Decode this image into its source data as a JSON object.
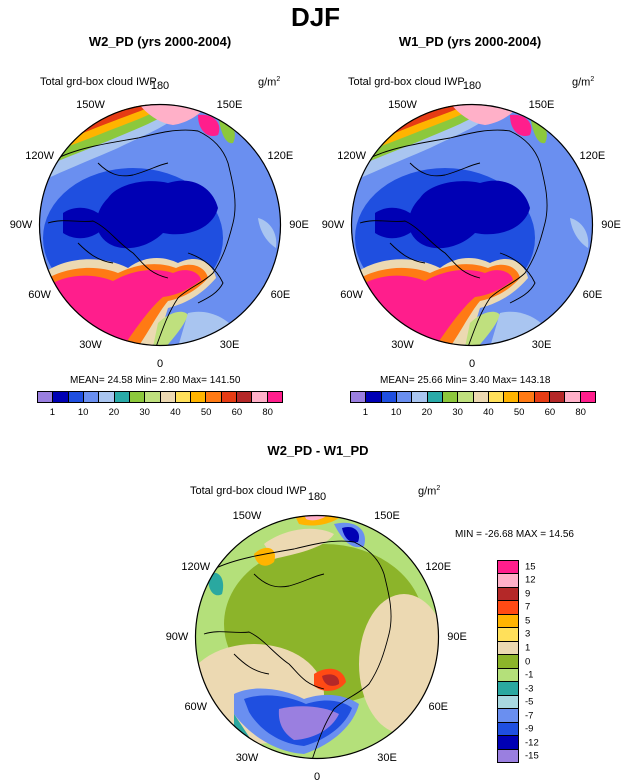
{
  "suptitle": "DJF",
  "units_sup": "2",
  "panels": [
    {
      "title": "W2_PD (yrs 2000-2004)",
      "left_label": "Total grd-box cloud IWP",
      "units": "g/m",
      "lon_labels": [
        "180",
        "150E",
        "120E",
        "90E",
        "60E",
        "30E",
        "0",
        "30W",
        "60W",
        "90W",
        "120W",
        "150W"
      ],
      "stats": "MEAN=  24.58  Min=    2.80  Max= 141.50",
      "colorbar_ticks": [
        "1",
        "10",
        "20",
        "30",
        "40",
        "50",
        "60",
        "80"
      ]
    },
    {
      "title": "W1_PD (yrs 2000-2004)",
      "left_label": "Total grd-box cloud IWP",
      "units": "g/m",
      "lon_labels": [
        "180",
        "150E",
        "120E",
        "90E",
        "60E",
        "30E",
        "0",
        "30W",
        "60W",
        "90W",
        "120W",
        "150W"
      ],
      "stats": "MEAN=  25.66  Min=    3.40  Max= 143.18",
      "colorbar_ticks": [
        "1",
        "10",
        "20",
        "30",
        "40",
        "50",
        "60",
        "80"
      ]
    },
    {
      "title": "W2_PD - W1_PD",
      "left_label": "Total grd-box cloud IWP",
      "units": "g/m",
      "lon_labels": [
        "180",
        "150E",
        "120E",
        "90E",
        "60E",
        "30E",
        "0",
        "30W",
        "60W",
        "90W",
        "120W",
        "150W"
      ],
      "stats": "MIN = -26.68 MAX =  14.56",
      "colorbar_ticks": [
        "15",
        "12",
        "9",
        "7",
        "5",
        "3",
        "1",
        "0",
        "-1",
        "-3",
        "-5",
        "-7",
        "-9",
        "-12",
        "-15"
      ]
    }
  ],
  "colors": {
    "seq": [
      "#9a7fe0",
      "#0000b4",
      "#1f4fe0",
      "#6a8ff0",
      "#a9c5f0",
      "#2aaaa8",
      "#8cc83c",
      "#bfe07e",
      "#ecd9b2",
      "#ffe05a",
      "#ffb400",
      "#ff7a14",
      "#e63c14",
      "#b42828",
      "#ffb0c8",
      "#ff1e8c"
    ],
    "div": [
      "#ff1e8c",
      "#ffb0c8",
      "#b42828",
      "#ff4a14",
      "#ffb400",
      "#ffe05a",
      "#ecd9b2",
      "#8cb42a",
      "#b4e07a",
      "#2aa8a0",
      "#a8d8e0",
      "#6a8ff0",
      "#1f4fe0",
      "#0000b4",
      "#9a7fe0"
    ]
  }
}
